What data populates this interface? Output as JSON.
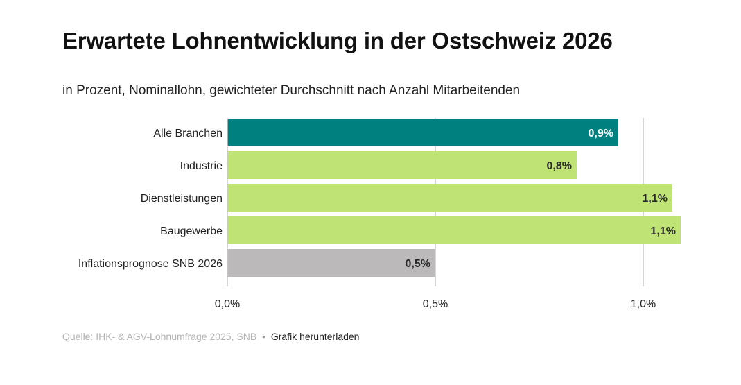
{
  "header": {
    "title": "Erwartete Lohnentwicklung in der Ostschweiz 2026",
    "subtitle": "in Prozent, Nominallohn, gewichteter Durchschnitt nach Anzahl Mitarbeitenden"
  },
  "footer": {
    "source": "Quelle: IHK- & AGV-Lohnumfrage 2025, SNB",
    "separator": "•",
    "download_label": "Grafik herunterladen"
  },
  "colors": {
    "highlight": "#00807f",
    "sector": "#bfe374",
    "reference": "#bbb9ba",
    "grid": "#c8c8c8",
    "label_dark": "#2a2a2a",
    "label_light": "#ffffff"
  },
  "chart_data": {
    "type": "bar",
    "orientation": "horizontal",
    "title": "Erwartete Lohnentwicklung in der Ostschweiz 2026",
    "subtitle": "in Prozent, Nominallohn, gewichteter Durchschnitt nach Anzahl Mitarbeitenden",
    "categories": [
      "Alle Branchen",
      "Industrie",
      "Dienstleistungen",
      "Baugewerbe",
      "Inflationsprognose SNB 2026"
    ],
    "values": [
      0.94,
      0.84,
      1.07,
      1.09,
      0.5
    ],
    "value_labels": [
      "0,9%",
      "0,8%",
      "1,1%",
      "1,1%",
      "0,5%"
    ],
    "bar_colors": [
      "#00807f",
      "#bfe374",
      "#bfe374",
      "#bfe374",
      "#bbb9ba"
    ],
    "value_label_colors": [
      "#ffffff",
      "#2a2a2a",
      "#2a2a2a",
      "#2a2a2a",
      "#2a2a2a"
    ],
    "xlim": [
      0,
      1.0
    ],
    "x_ticks": [
      0,
      0.5,
      1.0
    ],
    "x_tick_labels": [
      "0,0%",
      "0,5%",
      "1,0%"
    ],
    "grid": true,
    "legend": "none"
  }
}
